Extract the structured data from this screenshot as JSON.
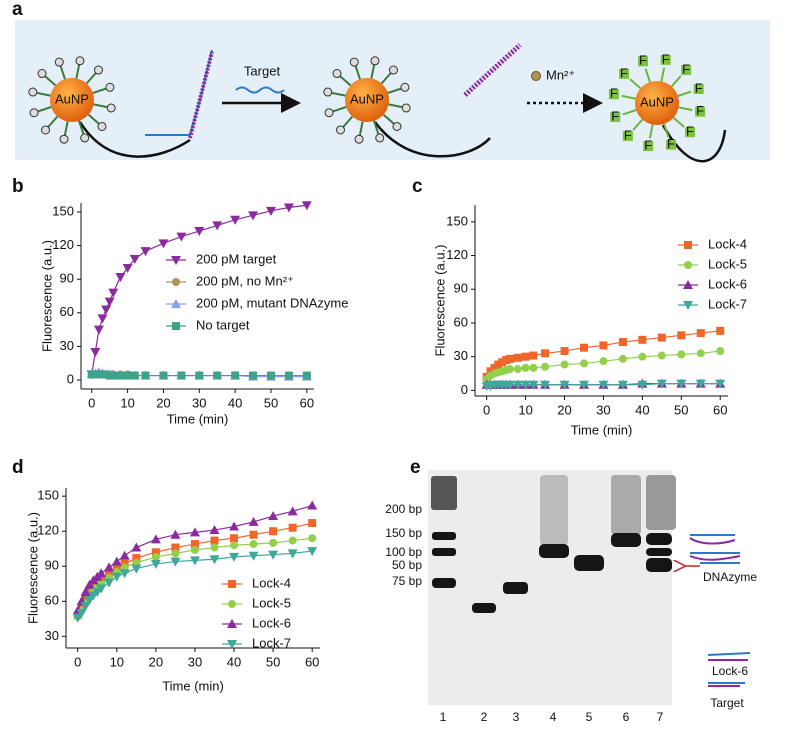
{
  "panel_labels": [
    "a",
    "b",
    "c",
    "d",
    "e"
  ],
  "diagram": {
    "particle_label": "AuNP",
    "target_label": "Target",
    "ion_label": "Mn²⁺",
    "fluorophore_label": "F"
  },
  "gel": {
    "size_markers": [
      "200 bp",
      "150 bp",
      "100 bp",
      "75 bp",
      "50 bp"
    ],
    "lanes": [
      "1",
      "2",
      "3",
      "4",
      "5",
      "6",
      "7"
    ],
    "annotations": [
      "DNAzyme",
      "Lock-6",
      "Target"
    ]
  },
  "chart_data": [
    {
      "type": "line",
      "xlabel": "Time (min)",
      "ylabel": "Fluorescence (a.u.)",
      "x": [
        0,
        1,
        2,
        3,
        4,
        5,
        6,
        8,
        10,
        12,
        15,
        20,
        25,
        30,
        35,
        40,
        45,
        50,
        55,
        60
      ],
      "xlim": [
        -3,
        62
      ],
      "xticks": [
        0,
        10,
        20,
        30,
        40,
        50,
        60
      ],
      "ylim": [
        -8,
        158
      ],
      "yticks": [
        0,
        30,
        60,
        90,
        120,
        150
      ],
      "legend": "center right",
      "series": [
        {
          "name": "200 pM target",
          "color": "#8b2a9e",
          "marker": "triangle-down",
          "values": [
            5,
            25,
            45,
            55,
            63,
            70,
            78,
            92,
            100,
            108,
            115,
            122,
            128,
            133,
            138,
            143,
            147,
            151,
            154,
            156
          ]
        },
        {
          "name": "200 pM, no Mn²⁺",
          "color": "#b0935a",
          "marker": "circle",
          "values": [
            5,
            5,
            6,
            5,
            5,
            5,
            5,
            5,
            5,
            4,
            4,
            4,
            4,
            4,
            4,
            4,
            4,
            4,
            4,
            4
          ]
        },
        {
          "name": "200 pM, mutant DNAzyme",
          "color": "#8c9cf0",
          "marker": "triangle-up",
          "values": [
            6,
            6,
            7,
            6,
            5,
            5,
            5,
            4,
            4,
            4,
            4,
            4,
            4,
            4,
            4,
            4,
            3,
            3,
            3,
            3
          ]
        },
        {
          "name": "No target",
          "color": "#3fa28a",
          "marker": "square",
          "values": [
            5,
            5,
            5,
            5,
            5,
            4,
            4,
            4,
            4,
            4,
            4,
            4,
            4,
            4,
            4,
            4,
            4,
            4,
            4,
            4
          ]
        }
      ]
    },
    {
      "type": "line",
      "xlabel": "Time (min)",
      "ylabel": "Fluorescence (a.u.)",
      "x": [
        0,
        1,
        2,
        3,
        4,
        5,
        6,
        8,
        10,
        12,
        15,
        20,
        25,
        30,
        35,
        40,
        45,
        50,
        55,
        60
      ],
      "xlim": [
        -3,
        62
      ],
      "xticks": [
        0,
        10,
        20,
        30,
        40,
        50,
        60
      ],
      "ylim": [
        -5,
        165
      ],
      "yticks": [
        0,
        30,
        60,
        90,
        120,
        150
      ],
      "legend": "upper right",
      "series": [
        {
          "name": "Lock-4",
          "color": "#f0652a",
          "marker": "square",
          "values": [
            12,
            17,
            20,
            23,
            25,
            27,
            28,
            29,
            30,
            31,
            33,
            35,
            38,
            40,
            43,
            45,
            47,
            49,
            51,
            53
          ]
        },
        {
          "name": "Lock-5",
          "color": "#92cf4a",
          "marker": "circle",
          "values": [
            10,
            13,
            15,
            16,
            17,
            18,
            19,
            19,
            20,
            20,
            21,
            23,
            24,
            26,
            28,
            30,
            31,
            32,
            33,
            35
          ]
        },
        {
          "name": "Lock-6",
          "color": "#8b2aa0",
          "marker": "triangle-up",
          "values": [
            5,
            5,
            5,
            5,
            5,
            5,
            5,
            5,
            5,
            5,
            5,
            5,
            5,
            5,
            5,
            6,
            6,
            6,
            6,
            6
          ]
        },
        {
          "name": "Lock-7",
          "color": "#3fa898",
          "marker": "triangle-down",
          "values": [
            4,
            4,
            5,
            5,
            5,
            5,
            5,
            5,
            5,
            5,
            5,
            5,
            5,
            5,
            5,
            5,
            6,
            6,
            6,
            6
          ]
        }
      ]
    },
    {
      "type": "line",
      "xlabel": "Time (min)",
      "ylabel": "Fluorescence (a.u.)",
      "x": [
        0,
        1,
        2,
        3,
        4,
        5,
        6,
        8,
        10,
        12,
        15,
        20,
        25,
        30,
        35,
        40,
        45,
        50,
        55,
        60
      ],
      "xlim": [
        -3,
        62
      ],
      "xticks": [
        0,
        10,
        20,
        30,
        40,
        50,
        60
      ],
      "ylim": [
        20,
        157
      ],
      "yticks": [
        30,
        60,
        90,
        120,
        150
      ],
      "legend": "lower right",
      "series": [
        {
          "name": "Lock-4",
          "color": "#f0652a",
          "marker": "square",
          "values": [
            48,
            55,
            62,
            68,
            73,
            76,
            79,
            84,
            88,
            92,
            97,
            102,
            106,
            109,
            112,
            114,
            117,
            120,
            123,
            127
          ]
        },
        {
          "name": "Lock-5",
          "color": "#92cf4a",
          "marker": "circle",
          "values": [
            47,
            52,
            58,
            64,
            69,
            72,
            75,
            80,
            85,
            89,
            93,
            98,
            101,
            104,
            106,
            108,
            109,
            110,
            112,
            114
          ]
        },
        {
          "name": "Lock-6",
          "color": "#8b2aa0",
          "marker": "triangle-up",
          "values": [
            52,
            60,
            68,
            74,
            78,
            81,
            84,
            89,
            94,
            99,
            106,
            113,
            117,
            119,
            121,
            124,
            128,
            133,
            137,
            142
          ]
        },
        {
          "name": "Lock-7",
          "color": "#3fa898",
          "marker": "triangle-down",
          "values": [
            46,
            50,
            56,
            61,
            65,
            68,
            71,
            76,
            81,
            84,
            88,
            92,
            94,
            95,
            96,
            98,
            99,
            100,
            101,
            103
          ]
        }
      ]
    }
  ]
}
